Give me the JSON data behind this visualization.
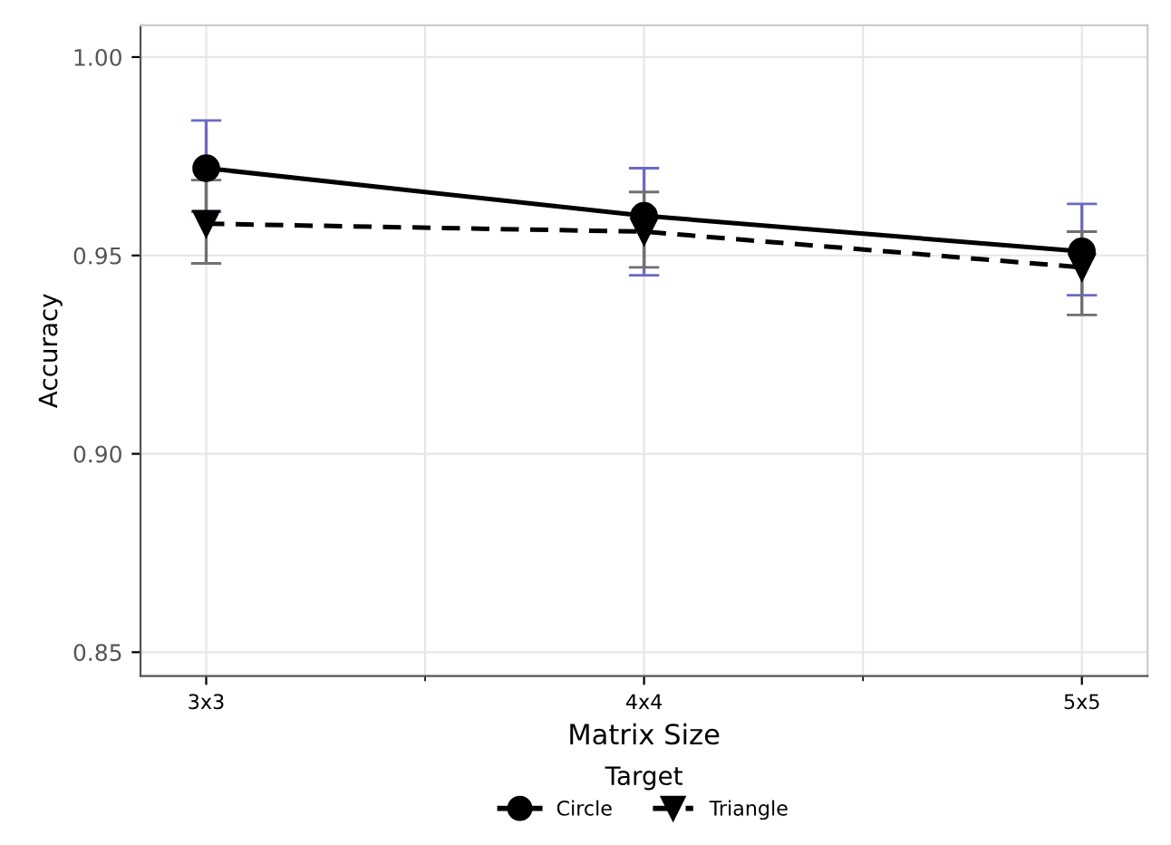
{
  "chart_data": {
    "type": "line",
    "xlabel": "Matrix Size",
    "ylabel": "Accuracy",
    "legend_title": "Target",
    "categories": [
      "3x3",
      "4x4",
      "5x5"
    ],
    "series": [
      {
        "name": "Circle",
        "color": "#000000",
        "values": [
          0.972,
          0.96,
          0.951
        ],
        "marker": "circle",
        "line_style": "solid",
        "errors": [
          [
            0.961,
            0.984
          ],
          [
            0.945,
            0.972
          ],
          [
            0.94,
            0.963
          ]
        ]
      },
      {
        "name": "Triangle",
        "color": "#000000",
        "values": [
          0.958,
          0.956,
          0.947
        ],
        "marker": "triangle",
        "line_style": "dashed",
        "errors": [
          [
            0.948,
            0.969
          ],
          [
            0.947,
            0.966
          ],
          [
            0.935,
            0.956
          ]
        ]
      }
    ],
    "ylim": [
      0.844,
      1.008
    ],
    "yticks": [
      {
        "value": 0.85,
        "label": "0.85"
      },
      {
        "value": 0.9,
        "label": "0.90"
      },
      {
        "value": 0.95,
        "label": "0.95"
      },
      {
        "value": 1.0,
        "label": "1.00"
      }
    ],
    "grid": true,
    "legend": "bottom"
  }
}
